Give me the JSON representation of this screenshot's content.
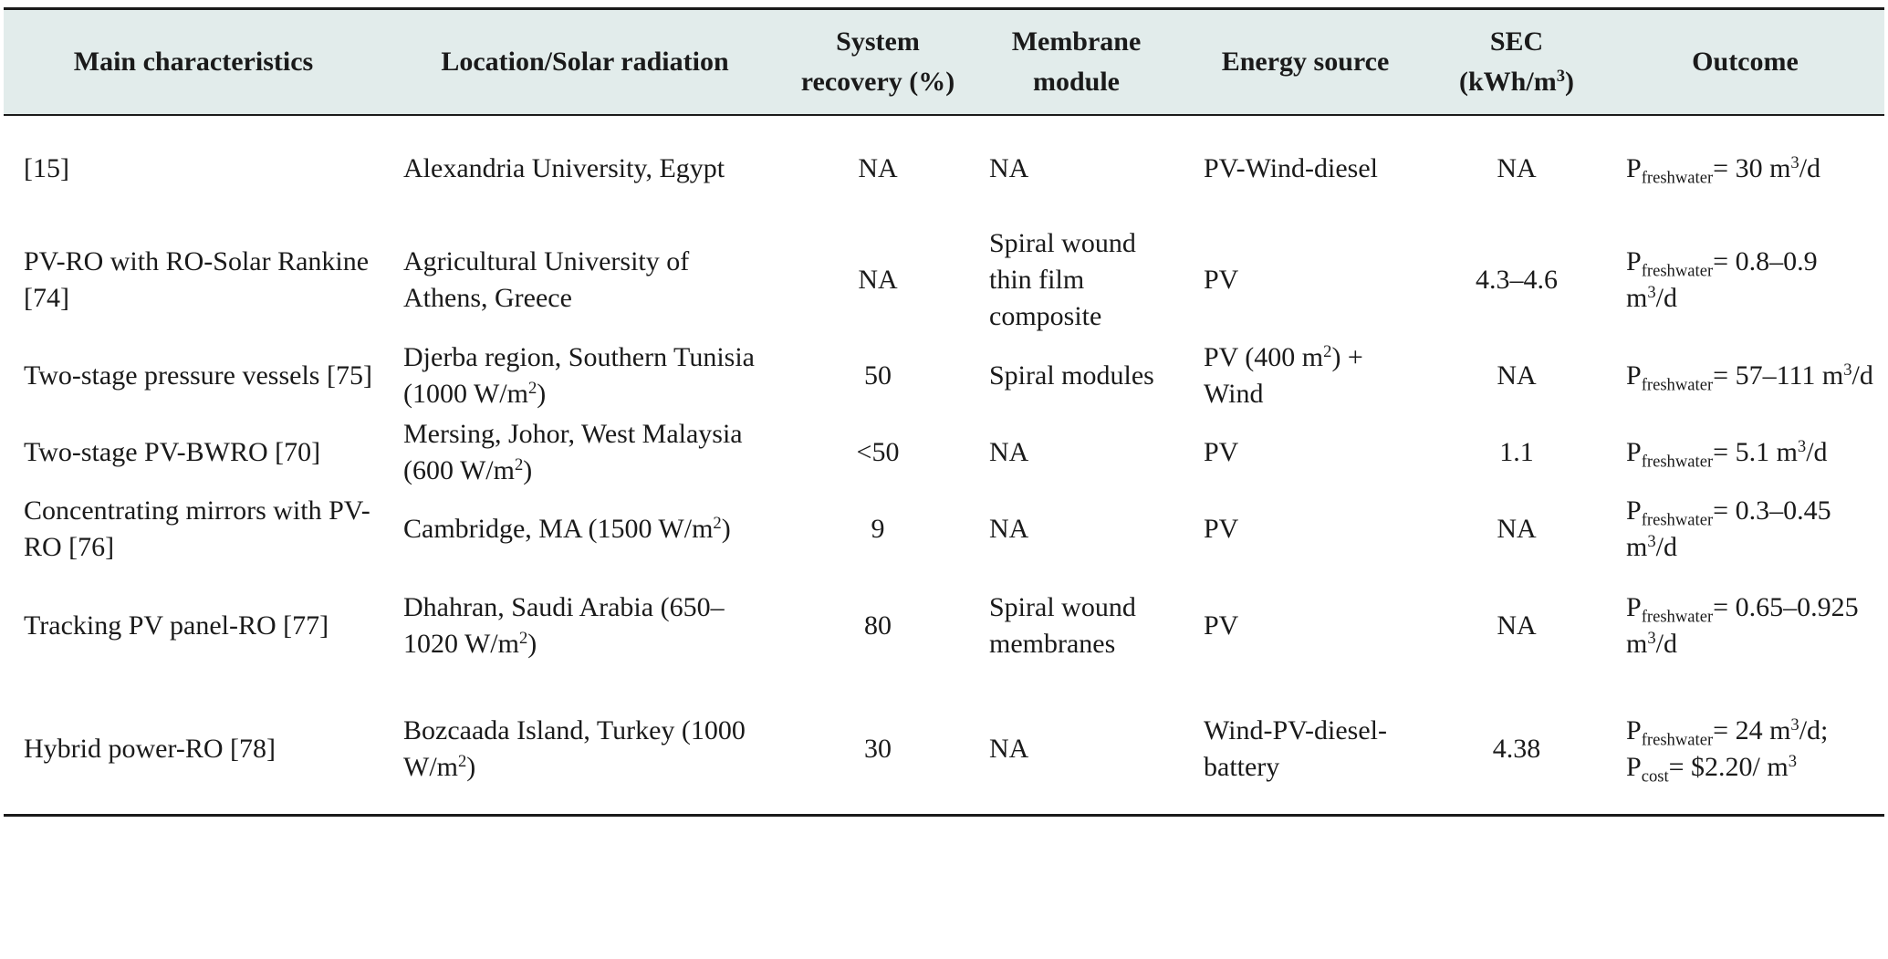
{
  "table": {
    "headers": {
      "characteristics": "Main characteristics",
      "location": "Location/Solar radiation",
      "recovery_line1": "System",
      "recovery_line2": "recovery (%)",
      "membrane_line1": "Membrane",
      "membrane_line2": "module",
      "energy": "Energy source",
      "sec_line1": "SEC",
      "sec_line2_pre": "(kWh/m",
      "sec_line2_sup": "3",
      "sec_line2_post": ")",
      "outcome": "Outcome"
    },
    "rows": [
      {
        "characteristics": "[15]",
        "location": "Alexandria University, Egypt",
        "location_sup": "",
        "location_post": "",
        "recovery": "NA",
        "membrane": "NA",
        "energy": "PV-Wind-diesel",
        "energy_sup": "",
        "energy_post": "",
        "sec": "NA",
        "outcome": [
          {
            "sym": "P",
            "sub": "freshwater",
            "text": "= 30 m",
            "sup": "3",
            "post": "/d"
          }
        ]
      },
      {
        "characteristics": "PV-RO with RO-Solar Rankine [74]",
        "location": "Agricultural University of Athens, Greece",
        "location_sup": "",
        "location_post": "",
        "recovery": "NA",
        "membrane": "Spiral wound thin film composite",
        "energy": "PV",
        "energy_sup": "",
        "energy_post": "",
        "sec": "4.3–4.6",
        "outcome": [
          {
            "sym": "P",
            "sub": "freshwater",
            "text": "= 0.8–0.9 m",
            "sup": "3",
            "post": "/d"
          }
        ]
      },
      {
        "characteristics": "Two-stage pressure vessels [75]",
        "location": "Djerba region, Southern Tunisia (1000 W/m",
        "location_sup": "2",
        "location_post": ")",
        "recovery": "50",
        "membrane": "Spiral modules",
        "energy": "PV (400 m",
        "energy_sup": "2",
        "energy_post": ") + Wind",
        "sec": "NA",
        "outcome": [
          {
            "sym": "P",
            "sub": "freshwater",
            "text": "= 57–111 m",
            "sup": "3",
            "post": "/d"
          }
        ]
      },
      {
        "characteristics": "Two-stage PV-BWRO [70]",
        "location": "Mersing, Johor, West Malaysia (600 W/m",
        "location_sup": "2",
        "location_post": ")",
        "recovery": "<50",
        "membrane": "NA",
        "energy": "PV",
        "energy_sup": "",
        "energy_post": "",
        "sec": "1.1",
        "outcome": [
          {
            "sym": "P",
            "sub": "freshwater",
            "text": "= 5.1 m",
            "sup": "3",
            "post": "/d"
          }
        ]
      },
      {
        "characteristics": "Concentrating mirrors with PV-RO [76]",
        "location": "Cambridge, MA (1500 W/m",
        "location_sup": "2",
        "location_post": ")",
        "recovery": "9",
        "membrane": "NA",
        "energy": "PV",
        "energy_sup": "",
        "energy_post": "",
        "sec": "NA",
        "outcome": [
          {
            "sym": "P",
            "sub": "freshwater",
            "text": "= 0.3–0.45 m",
            "sup": "3",
            "post": "/d"
          }
        ]
      },
      {
        "characteristics": "Tracking PV panel-RO [77]",
        "location": "Dhahran, Saudi Arabia (650–1020 W/m",
        "location_sup": "2",
        "location_post": ")",
        "recovery": "80",
        "membrane": "Spiral wound membranes",
        "energy": "PV",
        "energy_sup": "",
        "energy_post": "",
        "sec": "NA",
        "outcome": [
          {
            "sym": "P",
            "sub": "freshwater",
            "text": "= 0.65–0.925 m",
            "sup": "3",
            "post": "/d"
          }
        ]
      },
      {
        "characteristics": "Hybrid power-RO [78]",
        "location": "Bozcaada Island, Turkey (1000 W/m",
        "location_sup": "2",
        "location_post": ")",
        "recovery": "30",
        "membrane": "NA",
        "energy": "Wind-PV-diesel-battery",
        "energy_sup": "",
        "energy_post": "",
        "sec": "4.38",
        "outcome": [
          {
            "sym": "P",
            "sub": "freshwater",
            "text": "= 24 m",
            "sup": "3",
            "post": "/d;"
          },
          {
            "sym": "P",
            "sub": "cost",
            "text": "= $2.20/ m",
            "sup": "3",
            "post": ""
          }
        ]
      }
    ]
  }
}
